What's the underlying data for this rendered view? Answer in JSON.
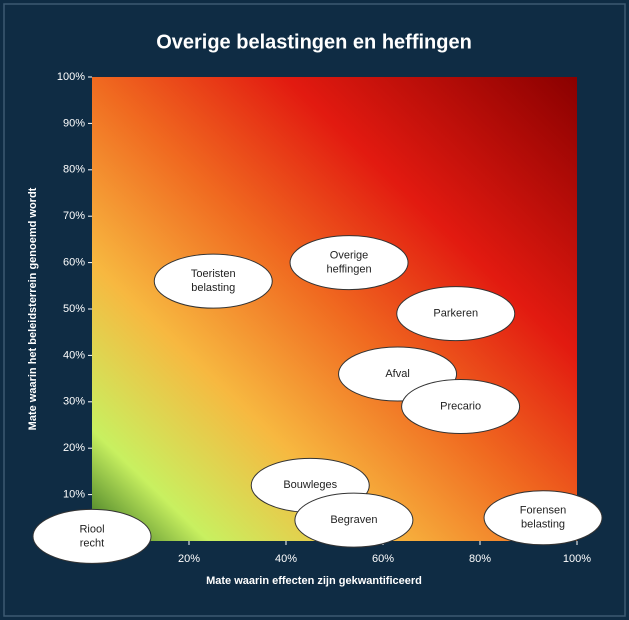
{
  "chart_data": {
    "type": "scatter",
    "title": "Overige belastingen en heffingen",
    "x_label": "Mate waarin effecten zijn gekwantificeerd",
    "y_label": "Mate waarin het beleidsterrein genoemd wordt",
    "xlim": [
      0,
      100
    ],
    "ylim": [
      0,
      100
    ],
    "xticks": [
      {
        "value": 20,
        "label": "20%"
      },
      {
        "value": 40,
        "label": "40%"
      },
      {
        "value": 60,
        "label": "60%"
      },
      {
        "value": 80,
        "label": "80%"
      },
      {
        "value": 100,
        "label": "100%"
      }
    ],
    "yticks": [
      {
        "value": 10,
        "label": "10%"
      },
      {
        "value": 20,
        "label": "20%"
      },
      {
        "value": 30,
        "label": "30%"
      },
      {
        "value": 40,
        "label": "40%"
      },
      {
        "value": 50,
        "label": "50%"
      },
      {
        "value": 60,
        "label": "60%"
      },
      {
        "value": 70,
        "label": "70%"
      },
      {
        "value": 80,
        "label": "80%"
      },
      {
        "value": 90,
        "label": "90%"
      },
      {
        "value": 100,
        "label": "100%"
      }
    ],
    "labels": [
      [
        "Riool",
        "recht"
      ],
      [
        "Toeristen",
        "belasting"
      ],
      [
        "Overige",
        "heffingen"
      ],
      [
        "Parkeren"
      ],
      [
        "Afval"
      ],
      [
        "Precario"
      ],
      [
        "Bouwleges"
      ],
      [
        "Begraven"
      ],
      [
        "Forensen",
        "belasting"
      ]
    ],
    "x": [
      0,
      25,
      53,
      75,
      63,
      76,
      45,
      54,
      93
    ],
    "values": [
      1,
      56,
      60,
      49,
      36,
      29,
      12,
      4.5,
      5
    ],
    "color": "#ffffff"
  }
}
